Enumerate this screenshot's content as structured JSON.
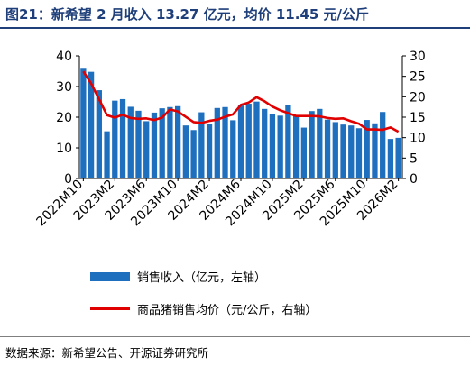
{
  "header": {
    "title": "图21：新希望 2 月收入 13.27 亿元，均价 11.45 元/公斤"
  },
  "footer": {
    "source": "数据来源：新希望公告、开源证券研究所"
  },
  "colors": {
    "bar": "#1f6fbf",
    "line": "#e00000",
    "title": "#1f3f7a"
  },
  "chart_data": {
    "type": "bar",
    "left_axis": {
      "ylim": [
        0,
        40
      ],
      "ticks": [
        0,
        10,
        20,
        30,
        40
      ]
    },
    "right_axis": {
      "ylim": [
        0,
        30
      ],
      "ticks": [
        0,
        5,
        10,
        15,
        20,
        25,
        30
      ]
    },
    "x_tick_labels": [
      "2022M10",
      "2023M2",
      "2023M6",
      "2023M10",
      "2024M2",
      "2024M6",
      "2024M10",
      "2025M2",
      "2025M6",
      "2025M10",
      "2026M2"
    ],
    "categories": [
      "2022M10",
      "2022M11",
      "2022M12",
      "2023M1",
      "2023M2",
      "2023M3",
      "2023M4",
      "2023M5",
      "2023M6",
      "2023M7",
      "2023M8",
      "2023M9",
      "2023M10",
      "2023M11",
      "2023M12",
      "2024M1",
      "2024M2",
      "2024M3",
      "2024M4",
      "2024M5",
      "2024M6",
      "2024M7",
      "2024M8",
      "2024M9",
      "2024M10",
      "2024M11",
      "2024M12",
      "2025M1",
      "2025M2",
      "2025M3",
      "2025M4",
      "2025M5",
      "2025M6",
      "2025M7",
      "2025M8",
      "2025M9",
      "2025M10",
      "2025M11",
      "2025M12",
      "2026M1",
      "2026M2"
    ],
    "series": [
      {
        "name": "销售收入（亿元，左轴）",
        "type": "bar",
        "axis": "left",
        "values": [
          36.1,
          34.8,
          28.8,
          15.4,
          25.4,
          25.9,
          23.4,
          22.1,
          18.7,
          21.5,
          22.9,
          23.3,
          23.6,
          17.3,
          15.8,
          21.6,
          17.9,
          23.0,
          23.3,
          19.0,
          23.8,
          24.4,
          25.1,
          22.7,
          21.0,
          20.5,
          24.1,
          20.7,
          16.6,
          22.0,
          22.7,
          19.2,
          18.4,
          17.6,
          17.3,
          16.4,
          19.1,
          18.0,
          21.7,
          12.9,
          13.27
        ]
      },
      {
        "name": "商品猪销售均价（元/公斤，右轴）",
        "type": "line",
        "axis": "right",
        "values": [
          26.2,
          23.2,
          19.4,
          15.5,
          14.9,
          15.6,
          14.8,
          14.6,
          14.7,
          14.3,
          14.9,
          16.9,
          16.4,
          15.1,
          13.8,
          13.6,
          14.1,
          14.4,
          15.1,
          15.7,
          18.0,
          18.6,
          19.9,
          18.9,
          17.6,
          16.7,
          16.0,
          15.3,
          15.3,
          15.3,
          15.2,
          14.8,
          14.6,
          14.7,
          14.0,
          13.4,
          12.0,
          12.0,
          11.9,
          12.5,
          11.45
        ]
      }
    ]
  }
}
